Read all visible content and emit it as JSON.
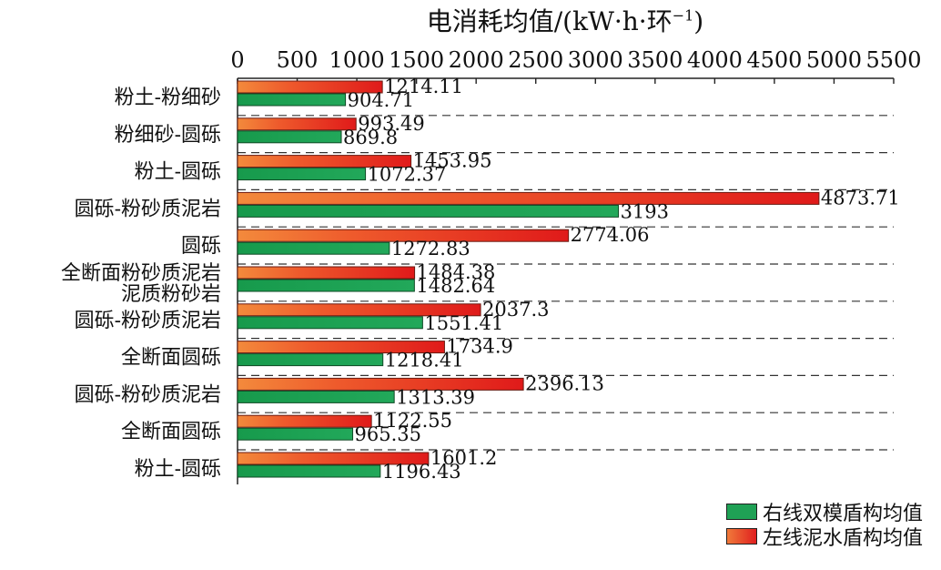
{
  "chart_data": {
    "type": "bar",
    "orientation": "horizontal",
    "title": "电消耗均值/(kW·h·环",
    "title_superscript": "−1",
    "title_suffix": ")",
    "xlim": [
      0,
      5500
    ],
    "x_ticks": [
      0,
      500,
      1000,
      1500,
      2000,
      2500,
      3000,
      3500,
      4000,
      4500,
      5000,
      5500
    ],
    "categories": [
      "粉土-粉细砂",
      "粉细砂-圆砾",
      "粉土-圆砾",
      "圆砾-粉砂质泥岩",
      "圆砾",
      "全断面粉砂质泥岩",
      "圆砾-粉砂质泥岩",
      "全断面圆砾",
      "圆砾-粉砂质泥岩",
      "全断面圆砾",
      "粉土-圆砾"
    ],
    "category_sublabels": [
      "",
      "",
      "",
      "",
      "",
      "泥质粉砂岩",
      "",
      "",
      "",
      "",
      ""
    ],
    "series": [
      {
        "name": "左线泥水盾构均值",
        "color": "#e31f1f",
        "values": [
          1214.11,
          993.49,
          1453.95,
          4873.71,
          2774.06,
          1484.38,
          2037.3,
          1734.9,
          2396.13,
          1122.55,
          1601.2
        ],
        "labels": [
          "1214.11",
          "993.49",
          "1453.95",
          "4873.71",
          "2774.06",
          "1484.38",
          "2037.3",
          "1734.9",
          "2396.13",
          "1122.55",
          "1601.2"
        ]
      },
      {
        "name": "右线双模盾构均值",
        "color": "#1fa155",
        "values": [
          904.71,
          869.8,
          1072.37,
          3193,
          1272.83,
          1482.64,
          1551.41,
          1218.41,
          1313.39,
          965.35,
          1196.43
        ],
        "labels": [
          "904.71",
          "869.8",
          "1072.37",
          "3193",
          "1272.83",
          "1482.64",
          "1551.41",
          "1218.41",
          "1313.39",
          "965.35",
          "1196.43"
        ]
      }
    ],
    "legend": [
      {
        "label": "右线双模盾构均值",
        "color": "#1fa155"
      },
      {
        "label": "左线泥水盾构均值",
        "color": "#e31f1f"
      }
    ],
    "legend_position": "bottom-right",
    "grid": "dashed-horizontal-separators"
  }
}
